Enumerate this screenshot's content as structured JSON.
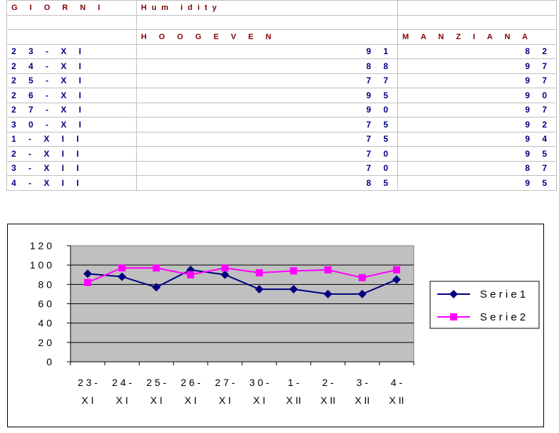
{
  "table": {
    "headers": [
      "G I O R N I",
      "Hum idity",
      ""
    ],
    "subheaders": [
      "",
      "H O O G E V E N",
      "M A N Z I A N A"
    ],
    "rows": [
      [
        "2 3  - X  I",
        "9 1",
        "8 2"
      ],
      [
        "2 4  - X  I",
        "8 8",
        "9 7"
      ],
      [
        "2 5  - X  I",
        "7 7",
        "9 7"
      ],
      [
        "2 6  - X  I",
        "9 5",
        "9 0"
      ],
      [
        "2 7  - X  I",
        "9 0",
        "9 7"
      ],
      [
        "3 0  - X  I",
        "7 5",
        "9 2"
      ],
      [
        "1  - X  I I",
        "7 5",
        "9 4"
      ],
      [
        "2  - X  I I",
        "7 0",
        "9 5"
      ],
      [
        "3  - X  I I",
        "7 0",
        "8 7"
      ],
      [
        "4  - X  I I",
        "8 5",
        "9 5"
      ]
    ]
  },
  "chart_data": {
    "type": "line",
    "categories": [
      [
        "2 3 -",
        "X I"
      ],
      [
        "2 4 -",
        "X I"
      ],
      [
        "2 5 -",
        "X I"
      ],
      [
        "2 6 -",
        "X I"
      ],
      [
        "2 7 -",
        "X I"
      ],
      [
        "3 0 -",
        "X I"
      ],
      [
        "1 -",
        "X II"
      ],
      [
        "2 -",
        "X II"
      ],
      [
        "3 -",
        "X II"
      ],
      [
        "4 -",
        "X II"
      ]
    ],
    "series": [
      {
        "name": "S e r i e 1",
        "values": [
          91,
          88,
          77,
          95,
          90,
          75,
          75,
          70,
          70,
          85
        ],
        "color": "#000080",
        "marker": "diamond"
      },
      {
        "name": "S e r i e 2",
        "values": [
          82,
          97,
          97,
          90,
          97,
          92,
          94,
          95,
          87,
          95
        ],
        "color": "#ff00ff",
        "marker": "square"
      }
    ],
    "ylim": [
      0,
      120
    ],
    "yticks": [
      "0",
      "2 0",
      "4 0",
      "6 0",
      "8 0",
      "1 0 0",
      "1 2 0"
    ],
    "plot_background": "#c0c0c0",
    "legend": "right"
  }
}
